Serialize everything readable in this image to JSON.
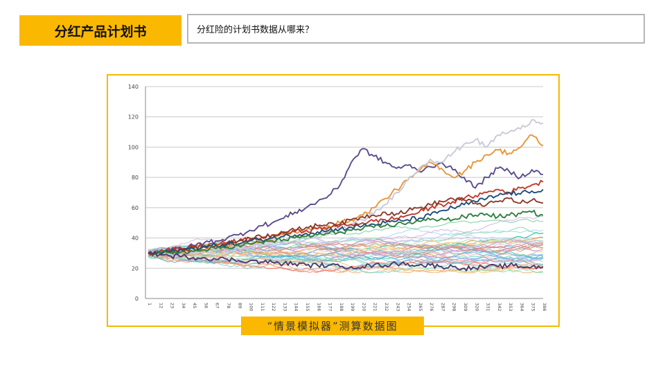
{
  "header": {
    "title": "分红产品计划书",
    "question": "分红险的计划书数据从哪来？"
  },
  "caption": "“情景模拟器”测算数据图",
  "chart_data": {
    "type": "line",
    "title": "",
    "xlabel": "",
    "ylabel": "",
    "ylim": [
      0,
      140
    ],
    "yticks": [
      0,
      20,
      40,
      60,
      80,
      100,
      120,
      140
    ],
    "grid": true,
    "legend": "none",
    "x_categories": [
      "1",
      "12",
      "23",
      "34",
      "45",
      "56",
      "67",
      "78",
      "89",
      "100",
      "111",
      "122",
      "133",
      "144",
      "155",
      "166",
      "177",
      "188",
      "199",
      "210",
      "221",
      "232",
      "243",
      "254",
      "265",
      "276",
      "287",
      "298",
      "309",
      "320",
      "331",
      "342",
      "353",
      "364",
      "375",
      "386"
    ],
    "highlighted_series": [
      {
        "color": "#5b4a8c",
        "values": [
          30,
          31,
          32,
          33,
          35,
          37,
          38,
          40,
          42,
          45,
          48,
          50,
          53,
          57,
          60,
          64,
          68,
          75,
          90,
          99,
          94,
          90,
          86,
          88,
          84,
          87,
          90,
          85,
          80,
          73,
          80,
          86,
          84,
          80,
          85,
          82
        ]
      },
      {
        "color": "#e8953a",
        "values": [
          30,
          30,
          31,
          31,
          31,
          32,
          33,
          34,
          35,
          36,
          38,
          40,
          42,
          44,
          45,
          46,
          48,
          50,
          52,
          55,
          60,
          66,
          72,
          78,
          84,
          90,
          86,
          80,
          84,
          90,
          95,
          98,
          96,
          100,
          108,
          101
        ]
      },
      {
        "color": "#c9c9d8",
        "values": [
          30,
          30,
          30,
          31,
          31,
          31,
          32,
          32,
          33,
          34,
          35,
          37,
          38,
          40,
          41,
          42,
          44,
          46,
          48,
          52,
          56,
          62,
          70,
          78,
          86,
          92,
          90,
          96,
          102,
          105,
          100,
          108,
          110,
          112,
          118,
          116
        ]
      },
      {
        "color": "#c0392b",
        "values": [
          30,
          31,
          32,
          33,
          34,
          35,
          36,
          37,
          38,
          39,
          40,
          42,
          43,
          44,
          45,
          46,
          47,
          48,
          49,
          50,
          51,
          52,
          53,
          55,
          57,
          60,
          62,
          64,
          66,
          68,
          70,
          72,
          70,
          73,
          75,
          77
        ]
      },
      {
        "color": "#8b3a2b",
        "values": [
          30,
          31,
          31,
          32,
          33,
          34,
          35,
          36,
          38,
          40,
          41,
          42,
          44,
          45,
          47,
          48,
          50,
          49,
          52,
          54,
          55,
          57,
          56,
          58,
          60,
          62,
          64,
          66,
          65,
          63,
          62,
          64,
          66,
          63,
          65,
          63
        ]
      },
      {
        "color": "#1f4e79",
        "values": [
          30,
          30,
          31,
          32,
          33,
          34,
          35,
          36,
          36,
          38,
          39,
          40,
          41,
          42,
          43,
          44,
          45,
          46,
          47,
          48,
          49,
          50,
          51,
          52,
          53,
          55,
          58,
          60,
          62,
          64,
          66,
          68,
          70,
          69,
          71,
          72
        ]
      },
      {
        "color": "#2f7f3f",
        "values": [
          30,
          30,
          30,
          31,
          31,
          32,
          33,
          34,
          35,
          36,
          37,
          38,
          39,
          40,
          41,
          42,
          43,
          44,
          45,
          46,
          47,
          48,
          49,
          50,
          51,
          52,
          53,
          52,
          54,
          55,
          56,
          54,
          55,
          56,
          57,
          55
        ]
      },
      {
        "color": "#4a3a6c",
        "values": [
          30,
          29,
          28,
          28,
          27,
          27,
          26,
          26,
          25,
          25,
          24,
          24,
          23,
          23,
          22,
          22,
          22,
          21,
          21,
          21,
          22,
          22,
          23,
          23,
          22,
          22,
          21,
          21,
          20,
          20,
          21,
          21,
          22,
          21,
          21,
          21
        ]
      }
    ],
    "background_series_count": 40,
    "background_series_range": [
      17,
      60
    ]
  }
}
